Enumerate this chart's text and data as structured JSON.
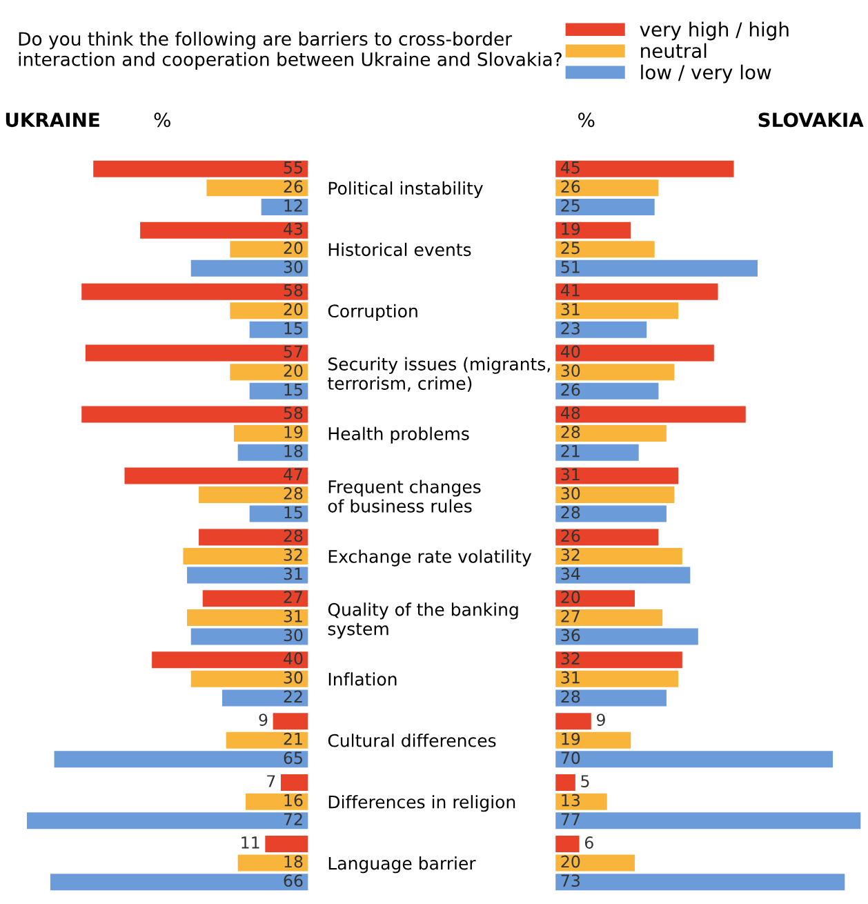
{
  "chart_data": [
    {
      "type": "bar",
      "orientation": "horizontal",
      "title": "Do you think the following are barriers to cross-border\ninteraction and cooperation between Ukraine and Slovakia?",
      "subtitle": "UKRAINE",
      "xlabel": "%",
      "categories": [
        "Political instability",
        "Historical events",
        "Corruption",
        "Security issues (migrants,\nterrorism, crime)",
        "Health problems",
        "Frequent changes\nof business rules",
        "Exchange rate volatility",
        "Quality of the banking\nsystem",
        "Inflation",
        "Cultural differences",
        "Differences in religion",
        "Language barrier"
      ],
      "series": [
        {
          "name": "very high / high",
          "color": "#e8432a",
          "values": [
            55,
            43,
            58,
            57,
            58,
            47,
            28,
            27,
            40,
            9,
            7,
            11
          ]
        },
        {
          "name": "neutral",
          "color": "#f9b53b",
          "values": [
            26,
            20,
            20,
            20,
            19,
            28,
            32,
            31,
            30,
            21,
            16,
            18
          ]
        },
        {
          "name": "low / very low",
          "color": "#6b9bd8",
          "values": [
            12,
            30,
            15,
            15,
            18,
            15,
            31,
            30,
            22,
            65,
            72,
            66
          ]
        }
      ],
      "data_labels": true,
      "legend": "top right",
      "tick_labels": "y",
      "grid": false
    },
    {
      "type": "bar",
      "orientation": "horizontal",
      "subtitle": "SLOVAKIA",
      "xlabel": "%",
      "categories": [
        null,
        null,
        null,
        null,
        null,
        null,
        null,
        null,
        null,
        null,
        null,
        null
      ],
      "series": [
        {
          "color": "#e8432a",
          "values": [
            45,
            19,
            41,
            40,
            48,
            31,
            26,
            20,
            32,
            9,
            5,
            6
          ]
        },
        {
          "color": "#f9b53b",
          "values": [
            26,
            25,
            31,
            30,
            28,
            30,
            32,
            27,
            31,
            19,
            13,
            20
          ]
        },
        {
          "color": "#6b9bd8",
          "values": [
            25,
            51,
            23,
            26,
            21,
            28,
            34,
            36,
            28,
            70,
            77,
            73
          ]
        }
      ],
      "data_labels": true,
      "tick_labels": false,
      "grid": false
    }
  ]
}
